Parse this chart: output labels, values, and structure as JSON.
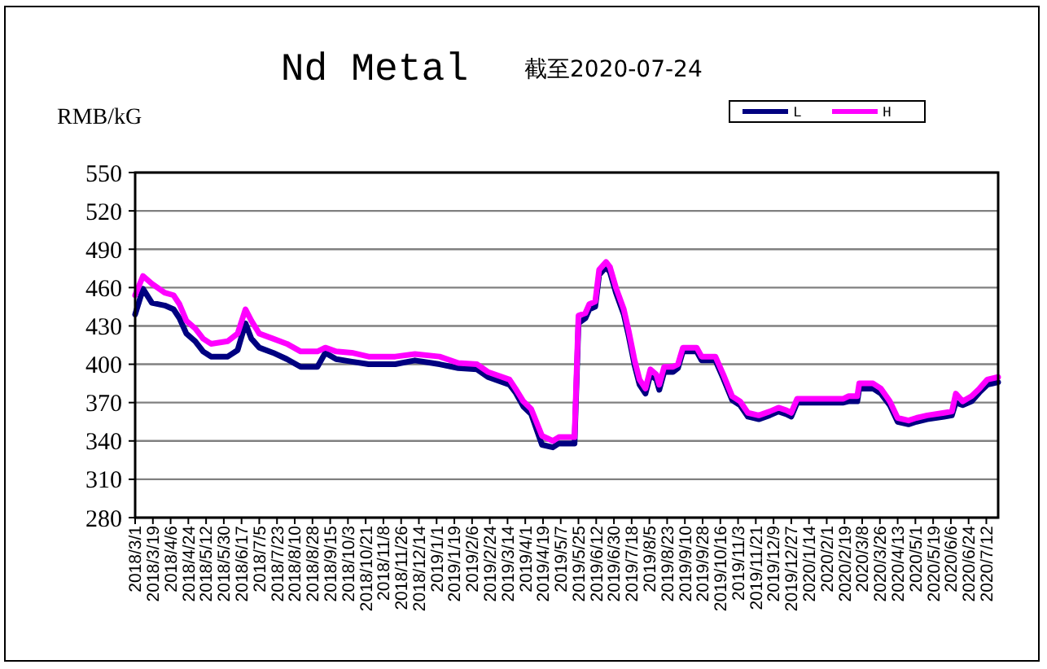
{
  "chart_data": {
    "type": "line",
    "title": "Nd Metal",
    "subtitle": "截至2020-07-24",
    "ylabel": "RMB/kG",
    "x": [
      "2018-03-01",
      "2018-03-09",
      "2018-03-18",
      "2018-03-31",
      "2018-04-09",
      "2018-04-15",
      "2018-04-22",
      "2018-05-01",
      "2018-05-09",
      "2018-05-17",
      "2018-06-03",
      "2018-06-13",
      "2018-06-21",
      "2018-06-27",
      "2018-07-05",
      "2018-07-19",
      "2018-08-02",
      "2018-08-16",
      "2018-09-02",
      "2018-09-10",
      "2018-09-21",
      "2018-10-07",
      "2018-10-24",
      "2018-11-20",
      "2018-12-10",
      "2019-01-04",
      "2019-01-23",
      "2019-02-11",
      "2019-02-22",
      "2019-03-16",
      "2019-03-22",
      "2019-03-30",
      "2019-04-07",
      "2019-04-18",
      "2019-04-29",
      "2019-05-05",
      "2019-05-21",
      "2019-05-25",
      "2019-06-01",
      "2019-06-05",
      "2019-06-11",
      "2019-06-15",
      "2019-06-22",
      "2019-06-26",
      "2019-07-02",
      "2019-07-10",
      "2019-07-15",
      "2019-07-21",
      "2019-07-26",
      "2019-08-01",
      "2019-08-06",
      "2019-08-12",
      "2019-08-15",
      "2019-08-20",
      "2019-08-29",
      "2019-09-03",
      "2019-09-08",
      "2019-09-22",
      "2019-09-27",
      "2019-10-11",
      "2019-10-19",
      "2019-10-28",
      "2019-11-05",
      "2019-11-13",
      "2019-11-24",
      "2019-12-05",
      "2019-12-14",
      "2019-12-22",
      "2019-12-27",
      "2020-01-02",
      "2020-01-29",
      "2020-02-18",
      "2020-02-23",
      "2020-03-03",
      "2020-03-05",
      "2020-03-19",
      "2020-03-27",
      "2020-04-05",
      "2020-04-13",
      "2020-04-24",
      "2020-05-02",
      "2020-05-13",
      "2020-05-30",
      "2020-06-07",
      "2020-06-11",
      "2020-06-18",
      "2020-06-27",
      "2020-07-05",
      "2020-07-13",
      "2020-07-24"
    ],
    "series": [
      {
        "name": "L",
        "color": "#000080",
        "values": [
          439,
          459,
          448,
          446,
          443,
          436,
          424,
          418,
          410,
          406,
          406,
          411,
          432,
          420,
          413,
          409,
          404,
          398,
          398,
          409,
          404,
          402,
          400,
          400,
          403,
          400,
          397,
          396,
          390,
          384,
          378,
          367,
          361,
          337,
          335,
          338,
          338,
          432,
          436,
          443,
          445,
          470,
          476,
          472,
          456,
          439,
          422,
          399,
          384,
          377,
          392,
          388,
          380,
          394,
          394,
          397,
          410,
          410,
          403,
          403,
          389,
          372,
          368,
          359,
          357,
          360,
          363,
          361,
          359,
          370,
          370,
          370,
          371,
          371,
          381,
          381,
          377,
          368,
          355,
          353,
          355,
          357,
          359,
          360,
          370,
          368,
          371,
          378,
          384,
          386
        ]
      },
      {
        "name": "H",
        "color": "#ff00ff",
        "values": [
          454,
          469,
          463,
          456,
          454,
          447,
          434,
          428,
          420,
          416,
          418,
          424,
          443,
          434,
          424,
          420,
          416,
          410,
          410,
          413,
          410,
          409,
          406,
          406,
          408,
          406,
          401,
          400,
          394,
          388,
          381,
          371,
          365,
          344,
          340,
          343,
          343,
          438,
          440,
          447,
          449,
          474,
          480,
          476,
          460,
          443,
          426,
          403,
          388,
          381,
          396,
          392,
          384,
          398,
          398,
          400,
          413,
          413,
          406,
          406,
          392,
          375,
          371,
          362,
          360,
          363,
          366,
          364,
          362,
          373,
          373,
          373,
          375,
          375,
          385,
          385,
          381,
          371,
          358,
          356,
          358,
          360,
          362,
          363,
          377,
          371,
          375,
          381,
          388,
          390
        ]
      }
    ],
    "xlim": [
      "2018-03-01",
      "2020-07-24"
    ],
    "xticks": [
      {
        "value": "2018-03-01",
        "label": "2018/3/1"
      },
      {
        "value": "2018-03-19",
        "label": "2018/3/19"
      },
      {
        "value": "2018-04-06",
        "label": "2018/4/6"
      },
      {
        "value": "2018-04-24",
        "label": "2018/4/24"
      },
      {
        "value": "2018-05-12",
        "label": "2018/5/12"
      },
      {
        "value": "2018-05-30",
        "label": "2018/5/30"
      },
      {
        "value": "2018-06-17",
        "label": "2018/6/17"
      },
      {
        "value": "2018-07-05",
        "label": "2018/7/5"
      },
      {
        "value": "2018-07-23",
        "label": "2018/7/23"
      },
      {
        "value": "2018-08-10",
        "label": "2018/8/10"
      },
      {
        "value": "2018-08-28",
        "label": "2018/8/28"
      },
      {
        "value": "2018-09-15",
        "label": "2018/9/15"
      },
      {
        "value": "2018-10-03",
        "label": "2018/10/3"
      },
      {
        "value": "2018-10-21",
        "label": "2018/10/21"
      },
      {
        "value": "2018-11-08",
        "label": "2018/11/8"
      },
      {
        "value": "2018-11-26",
        "label": "2018/11/26"
      },
      {
        "value": "2018-12-14",
        "label": "2018/12/14"
      },
      {
        "value": "2019-01-01",
        "label": "2019/1/1"
      },
      {
        "value": "2019-01-19",
        "label": "2019/1/19"
      },
      {
        "value": "2019-02-06",
        "label": "2019/2/6"
      },
      {
        "value": "2019-02-24",
        "label": "2019/2/24"
      },
      {
        "value": "2019-03-14",
        "label": "2019/3/14"
      },
      {
        "value": "2019-04-01",
        "label": "2019/4/1"
      },
      {
        "value": "2019-04-19",
        "label": "2019/4/19"
      },
      {
        "value": "2019-05-07",
        "label": "2019/5/7"
      },
      {
        "value": "2019-05-25",
        "label": "2019/5/25"
      },
      {
        "value": "2019-06-12",
        "label": "2019/6/12"
      },
      {
        "value": "2019-06-30",
        "label": "2019/6/30"
      },
      {
        "value": "2019-07-18",
        "label": "2019/7/18"
      },
      {
        "value": "2019-08-05",
        "label": "2019/8/5"
      },
      {
        "value": "2019-08-23",
        "label": "2019/8/23"
      },
      {
        "value": "2019-09-10",
        "label": "2019/9/10"
      },
      {
        "value": "2019-09-28",
        "label": "2019/9/28"
      },
      {
        "value": "2019-10-16",
        "label": "2019/10/16"
      },
      {
        "value": "2019-11-03",
        "label": "2019/11/3"
      },
      {
        "value": "2019-11-21",
        "label": "2019/11/21"
      },
      {
        "value": "2019-12-09",
        "label": "2019/12/9"
      },
      {
        "value": "2019-12-27",
        "label": "2019/12/27"
      },
      {
        "value": "2020-01-14",
        "label": "2020/1/14"
      },
      {
        "value": "2020-02-01",
        "label": "2020/2/1"
      },
      {
        "value": "2020-02-19",
        "label": "2020/2/19"
      },
      {
        "value": "2020-03-08",
        "label": "2020/3/8"
      },
      {
        "value": "2020-03-26",
        "label": "2020/3/26"
      },
      {
        "value": "2020-04-13",
        "label": "2020/4/13"
      },
      {
        "value": "2020-05-01",
        "label": "2020/5/1"
      },
      {
        "value": "2020-05-19",
        "label": "2020/5/19"
      },
      {
        "value": "2020-06-06",
        "label": "2020/6/6"
      },
      {
        "value": "2020-06-24",
        "label": "2020/6/24"
      },
      {
        "value": "2020-07-12",
        "label": "2020/7/12"
      }
    ],
    "ylim": [
      280,
      550
    ],
    "yticks": [
      280,
      310,
      340,
      370,
      400,
      430,
      460,
      490,
      520,
      550
    ],
    "grid": "y",
    "legend": "top right",
    "marker": "none",
    "line_style": "solid"
  }
}
